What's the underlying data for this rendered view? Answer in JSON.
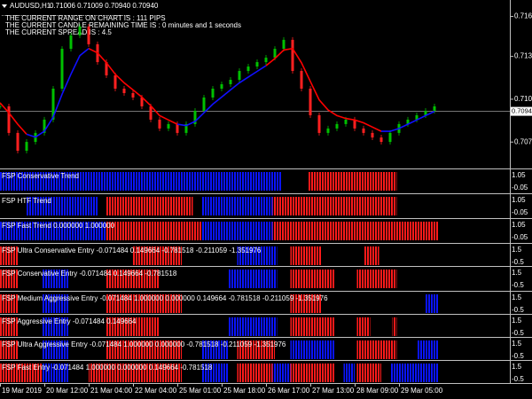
{
  "header": {
    "symbol": "AUDUSD,H1",
    "quote": "0.71006 0.71009 0.70940 0.70940"
  },
  "info_lines": [
    "THE CURRENT RANGE ON CHART IS : 111 PIPS",
    "THE CURRENT CANDLE REMAINING TIME IS : 0 minutes and 1 seconds",
    "THE CURRENT  SPREAD IS : 4.5"
  ],
  "main_chart": {
    "type": "candlestick",
    "xlim": [
      0,
      230
    ],
    "ylim": [
      0.7054,
      0.7172
    ],
    "yticks": [
      0.71605,
      0.71325,
      0.71025,
      0.70725
    ],
    "current_price": {
      "value": 0.7094,
      "label": "0.70940"
    },
    "up_color": "#00c000",
    "down_color": "#ff2020",
    "x": [
      0,
      4,
      8,
      12,
      16,
      20,
      24,
      28,
      32,
      36,
      40,
      44,
      48,
      52,
      56,
      60,
      64,
      68,
      72,
      76,
      80,
      84,
      88,
      92,
      96,
      100,
      104,
      108,
      112,
      116,
      120,
      124,
      128,
      132,
      136,
      140,
      144,
      148,
      152,
      156,
      160,
      164,
      168,
      172,
      176,
      180,
      184,
      188,
      192,
      196
    ],
    "closes": [
      0.70975,
      0.70789,
      0.70664,
      0.70726,
      0.70789,
      0.70882,
      0.71099,
      0.71378,
      0.71472,
      0.71534,
      0.7141,
      0.71285,
      0.71192,
      0.71099,
      0.71068,
      0.71037,
      0.70975,
      0.70882,
      0.7082,
      0.70851,
      0.70789,
      0.70851,
      0.70944,
      0.71037,
      0.71099,
      0.7113,
      0.71161,
      0.71223,
      0.71254,
      0.71285,
      0.71316,
      0.71378,
      0.71441,
      0.71223,
      0.71099,
      0.70913,
      0.70789,
      0.7082,
      0.70851,
      0.70882,
      0.7082,
      0.70789,
      0.70757,
      0.70726,
      0.70789,
      0.70851,
      0.70882,
      0.70913,
      0.70944,
      0.70975
    ],
    "ma_down": {
      "color": "#ff0000",
      "values": [
        0.71,
        0.7093,
        0.7085,
        0.7078,
        null,
        null,
        null,
        null,
        null,
        null,
        0.7138,
        0.7135,
        0.7128,
        0.712,
        0.7114,
        0.7109,
        0.7104,
        0.7098,
        0.7091,
        0.7088,
        0.7085,
        null,
        null,
        null,
        null,
        null,
        null,
        null,
        null,
        null,
        0.7126,
        0.7131,
        0.7137,
        0.7138,
        0.7128,
        0.7115,
        0.7102,
        0.7095,
        0.7091,
        0.7089,
        0.7088,
        0.7086,
        0.7083,
        0.708,
        null,
        null,
        null,
        null,
        null,
        null
      ]
    },
    "ma_up": {
      "color": "#1010ff",
      "values": [
        null,
        null,
        null,
        0.7078,
        0.7076,
        0.708,
        0.709,
        0.7106,
        0.712,
        0.7133,
        0.7138,
        null,
        null,
        null,
        null,
        null,
        null,
        null,
        null,
        null,
        0.7085,
        0.7084,
        0.7087,
        0.7093,
        0.7099,
        0.7104,
        0.7109,
        0.7114,
        0.7118,
        0.7122,
        0.7126,
        null,
        null,
        null,
        null,
        null,
        null,
        null,
        null,
        null,
        null,
        null,
        null,
        0.708,
        0.708,
        0.7082,
        0.7085,
        0.7088,
        0.7091,
        0.7094
      ]
    }
  },
  "panels": [
    {
      "title": "FSP Conservative Trend",
      "axis_labels": [
        "1.05",
        "-0.05"
      ],
      "segments": [
        {
          "start": 0,
          "end": 127,
          "color": "#0a14ff"
        },
        {
          "start": 139,
          "end": 179,
          "color": "#ff1a1a"
        }
      ]
    },
    {
      "title": "FSP HTF Trend",
      "axis_labels": [
        "1.05",
        "-0.05"
      ],
      "segments": [
        {
          "start": 12,
          "end": 44,
          "color": "#0a14ff"
        },
        {
          "start": 48,
          "end": 87,
          "color": "#ff1a1a"
        },
        {
          "start": 91,
          "end": 123,
          "color": "#0a14ff"
        },
        {
          "start": 123,
          "end": 179,
          "color": "#ff1a1a"
        }
      ]
    },
    {
      "title": "FSP Fast Trend 0.000000 1.000000",
      "axis_labels": [
        "1.05",
        "-0.05"
      ],
      "segments": [
        {
          "start": 0,
          "end": 48,
          "color": "#0a14ff"
        },
        {
          "start": 48,
          "end": 91,
          "color": "#ff1a1a"
        },
        {
          "start": 91,
          "end": 123,
          "color": "#0a14ff"
        },
        {
          "start": 123,
          "end": 198,
          "color": "#ff1a1a"
        }
      ]
    },
    {
      "title": "FSP Ultra Conservative Entry -0.071484 0.149664 -0.781518 -0.211059 -1.351976",
      "axis_labels": [
        "1.5",
        "-0.5"
      ],
      "segments": [
        {
          "start": 0,
          "end": 8,
          "color": "#ff1a1a"
        },
        {
          "start": 60,
          "end": 82,
          "color": "#ff1a1a"
        },
        {
          "start": 107,
          "end": 125,
          "color": "#0a14ff"
        },
        {
          "start": 131,
          "end": 145,
          "color": "#ff1a1a"
        },
        {
          "start": 164,
          "end": 171,
          "color": "#ff1a1a"
        }
      ]
    },
    {
      "title": "FSP Conservative Entry -0.071484 0.149664 -0.781518",
      "axis_labels": [
        "1.5",
        "-0.5"
      ],
      "segments": [
        {
          "start": 0,
          "end": 8,
          "color": "#ff1a1a"
        },
        {
          "start": 19,
          "end": 31,
          "color": "#0a14ff"
        },
        {
          "start": 48,
          "end": 72,
          "color": "#ff1a1a"
        },
        {
          "start": 103,
          "end": 125,
          "color": "#0a14ff"
        },
        {
          "start": 131,
          "end": 151,
          "color": "#ff1a1a"
        },
        {
          "start": 161,
          "end": 179,
          "color": "#ff1a1a"
        }
      ]
    },
    {
      "title": "FSP Medium Aggressive Entry -0.071484 1.000000 0.000000 0.149664 -0.781518 -0.211059 -1.351976",
      "axis_labels": [
        "1.5",
        "-0.5"
      ],
      "segments": [
        {
          "start": 0,
          "end": 8,
          "color": "#ff1a1a"
        },
        {
          "start": 19,
          "end": 31,
          "color": "#0a14ff"
        },
        {
          "start": 48,
          "end": 82,
          "color": "#ff1a1a"
        },
        {
          "start": 131,
          "end": 145,
          "color": "#ff1a1a"
        },
        {
          "start": 192,
          "end": 198,
          "color": "#0a14ff"
        }
      ]
    },
    {
      "title": "FSP Aggressive Entry -0.071484 0.149664",
      "axis_labels": [
        "1.5",
        "-0.5"
      ],
      "segments": [
        {
          "start": 0,
          "end": 8,
          "color": "#ff1a1a"
        },
        {
          "start": 19,
          "end": 31,
          "color": "#0a14ff"
        },
        {
          "start": 48,
          "end": 72,
          "color": "#ff1a1a"
        },
        {
          "start": 103,
          "end": 125,
          "color": "#0a14ff"
        },
        {
          "start": 131,
          "end": 151,
          "color": "#ff1a1a"
        },
        {
          "start": 161,
          "end": 167,
          "color": "#ff1a1a"
        },
        {
          "start": 177,
          "end": 179,
          "color": "#ff1a1a"
        }
      ]
    },
    {
      "title": "FSP Ultra Aggressive Entry -0.071484 1.000000 0.000000 -0.781518 -0.211059 -1.351976",
      "axis_labels": [
        "1.5",
        "-0.5"
      ],
      "segments": [
        {
          "start": 0,
          "end": 8,
          "color": "#ff1a1a"
        },
        {
          "start": 19,
          "end": 31,
          "color": "#0a14ff"
        },
        {
          "start": 48,
          "end": 82,
          "color": "#ff1a1a"
        },
        {
          "start": 91,
          "end": 103,
          "color": "#0a14ff"
        },
        {
          "start": 107,
          "end": 124,
          "color": "#ff1a1a"
        },
        {
          "start": 131,
          "end": 151,
          "color": "#0a14ff"
        },
        {
          "start": 161,
          "end": 179,
          "color": "#ff1a1a"
        },
        {
          "start": 188,
          "end": 198,
          "color": "#0a14ff"
        }
      ]
    },
    {
      "title": "FSP Fast Entry -0.071484 1.000000 0.000000 0.149664 -0.781518",
      "axis_labels": [
        "1.5",
        "-0.5"
      ],
      "segments": [
        {
          "start": 0,
          "end": 19,
          "color": "#ff1a1a"
        },
        {
          "start": 19,
          "end": 31,
          "color": "#0a14ff"
        },
        {
          "start": 40,
          "end": 82,
          "color": "#ff1a1a"
        },
        {
          "start": 91,
          "end": 103,
          "color": "#0a14ff"
        },
        {
          "start": 107,
          "end": 123,
          "color": "#ff1a1a"
        },
        {
          "start": 123,
          "end": 131,
          "color": "#0a14ff"
        },
        {
          "start": 131,
          "end": 151,
          "color": "#ff1a1a"
        },
        {
          "start": 155,
          "end": 160,
          "color": "#0a14ff"
        },
        {
          "start": 161,
          "end": 172,
          "color": "#ff1a1a"
        },
        {
          "start": 176,
          "end": 198,
          "color": "#0a14ff"
        }
      ]
    }
  ],
  "time_axis": {
    "ticks": [
      {
        "value": 0,
        "label": "19 Mar 2019"
      },
      {
        "value": 20,
        "label": "20 Mar 12:00"
      },
      {
        "value": 40,
        "label": "21 Mar 04:00"
      },
      {
        "value": 60,
        "label": "22 Mar 04:00"
      },
      {
        "value": 80,
        "label": "25 Mar 01:00"
      },
      {
        "value": 100,
        "label": "25 Mar 18:00"
      },
      {
        "value": 120,
        "label": "26 Mar 17:00"
      },
      {
        "value": 140,
        "label": "27 Mar 13:00"
      },
      {
        "value": 160,
        "label": "28 Mar 09:00"
      },
      {
        "value": 180,
        "label": "29 Mar 05:00"
      }
    ]
  }
}
